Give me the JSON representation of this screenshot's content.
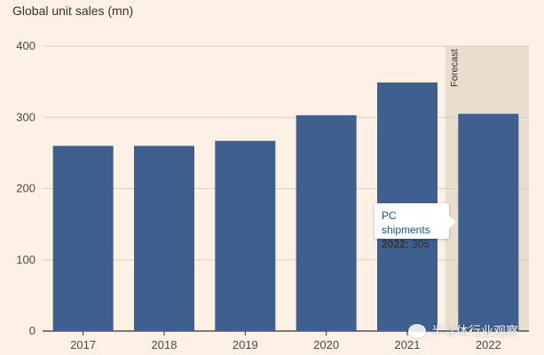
{
  "chart_data": {
    "type": "bar",
    "title": "Global unit sales (mn)",
    "categories": [
      "2017",
      "2018",
      "2019",
      "2020",
      "2021",
      "2022"
    ],
    "series": [
      {
        "name": "PC shipments",
        "values": [
          260,
          260,
          267,
          303,
          349,
          305
        ]
      }
    ],
    "ylim": [
      0,
      400
    ],
    "yticks": [
      0,
      100,
      200,
      300,
      400
    ],
    "grid": true,
    "forecast_label": "Forecast",
    "forecast_category": "2022",
    "tooltip": {
      "series": "PC shipments",
      "year": "2022",
      "value": "305"
    }
  },
  "colors": {
    "background": "#fdf1e6",
    "bar": "#3f5f8f",
    "forecast_band": "#e9ddd0",
    "grid": "#d8cfc6"
  },
  "watermark": "半导体行业观察"
}
